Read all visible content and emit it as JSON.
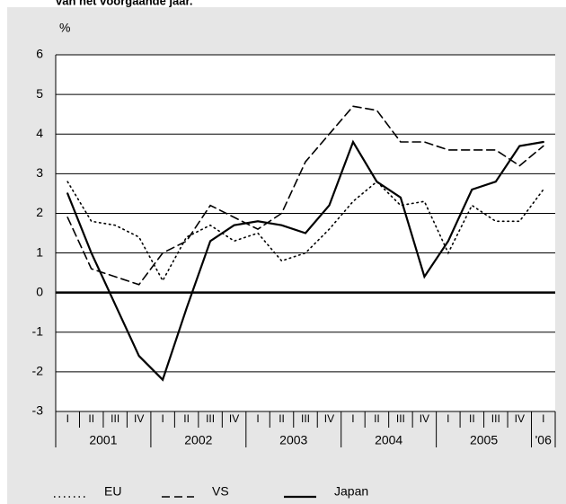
{
  "chart_data": {
    "type": "line",
    "title": "van het voorgaande jaar.",
    "y_label": "%",
    "categories": [
      "I",
      "II",
      "III",
      "IV",
      "I",
      "II",
      "III",
      "IV",
      "I",
      "II",
      "III",
      "IV",
      "I",
      "II",
      "III",
      "IV",
      "I",
      "II",
      "III",
      "IV",
      "I"
    ],
    "years": [
      "2001",
      "2002",
      "2003",
      "2004",
      "2005",
      "'06"
    ],
    "series": [
      {
        "name": "EU",
        "color": "#000000",
        "dash": "dotted",
        "values": [
          2.8,
          1.8,
          1.7,
          1.4,
          0.3,
          1.4,
          1.7,
          1.3,
          1.5,
          0.8,
          1.0,
          1.6,
          2.3,
          2.8,
          2.2,
          2.3,
          1.0,
          2.2,
          1.8,
          1.8,
          2.6
        ]
      },
      {
        "name": "VS",
        "color": "#000000",
        "dash": "dashed",
        "values": [
          1.9,
          0.6,
          0.4,
          0.2,
          1.0,
          1.3,
          2.2,
          1.9,
          1.6,
          2.0,
          3.3,
          4.0,
          4.7,
          4.6,
          3.8,
          3.8,
          3.6,
          3.6,
          3.6,
          3.2,
          3.7
        ]
      },
      {
        "name": "Japan",
        "color": "#000000",
        "dash": "solid",
        "values": [
          2.5,
          1.0,
          -0.3,
          -1.6,
          -2.2,
          -0.4,
          1.3,
          1.7,
          1.8,
          1.7,
          1.5,
          2.2,
          3.8,
          2.8,
          2.4,
          0.4,
          1.3,
          2.6,
          2.8,
          3.7,
          3.8
        ]
      }
    ],
    "ylim": [
      -3,
      6
    ],
    "yticks": [
      -3,
      -2,
      -1,
      0,
      1,
      2,
      3,
      4,
      5,
      6
    ],
    "grid": true
  }
}
